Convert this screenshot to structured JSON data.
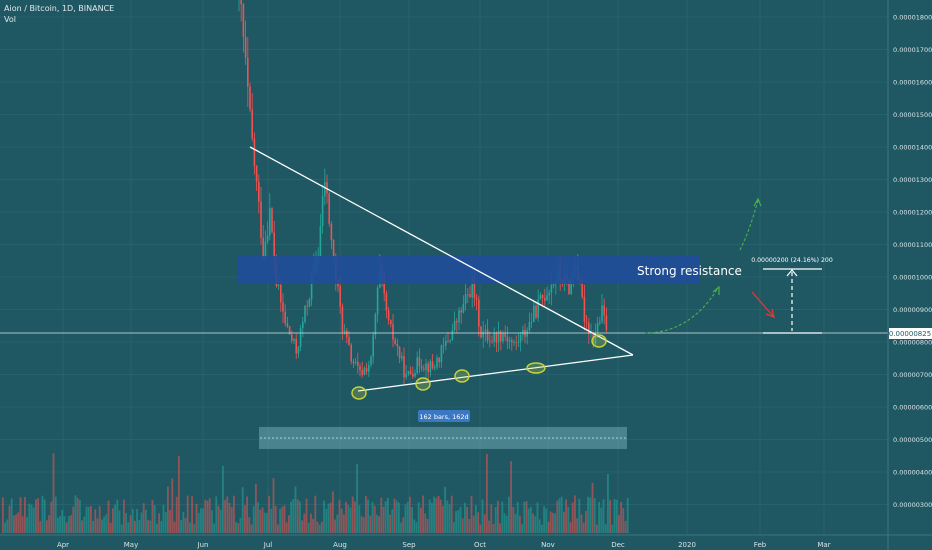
{
  "header": {
    "symbol": "Aion / Bitcoin, 1D, BINANCE",
    "indicator": "Vol"
  },
  "colors": {
    "background": "#1f5863",
    "grid": "#2b6570",
    "up": "#26a69a",
    "down": "#ef5350",
    "resistance": "#1f4e9a",
    "range_box": "#7fb8c4",
    "axis_text": "#d8e4e7",
    "white": "#ffffff",
    "arrow_green": "#4caf50",
    "arrow_red": "#e53935",
    "ellipse": "#c6d23a",
    "price_tag_bg": "#ffffff"
  },
  "chart_data": {
    "type": "candlestick",
    "title": "Aion / Bitcoin, 1D, BINANCE",
    "x_axis": {
      "ticks": [
        "Apr",
        "May",
        "Jun",
        "Jul",
        "Aug",
        "Sep",
        "Oct",
        "Nov",
        "Dec",
        "2020",
        "Feb",
        "Mar"
      ]
    },
    "y_axis": {
      "range": [
        2.5e-06,
        1.9e-06
      ],
      "ticks": [
        "0.00001800",
        "0.00001700",
        "0.00001600",
        "0.00001500",
        "0.00001400",
        "0.00001300",
        "0.00001200",
        "0.00001100",
        "0.00001000",
        "0.00000900",
        "0.00000800",
        "0.00000700",
        "0.00000600",
        "0.00000500",
        "0.00000400",
        "0.00000300"
      ],
      "current_price": "0.00000825"
    },
    "price_path": [
      {
        "date": "2019-06-20",
        "price": 1.89e-05
      },
      {
        "date": "2019-06-22",
        "price": 1.73e-05
      },
      {
        "date": "2019-06-25",
        "price": 1.48e-05
      },
      {
        "date": "2019-06-28",
        "price": 1.28e-05
      },
      {
        "date": "2019-07-01",
        "price": 1.08e-05
      },
      {
        "date": "2019-07-04",
        "price": 1.2e-05
      },
      {
        "date": "2019-07-07",
        "price": 9.8e-06
      },
      {
        "date": "2019-07-11",
        "price": 8.6e-06
      },
      {
        "date": "2019-07-16",
        "price": 7.7e-06
      },
      {
        "date": "2019-07-21",
        "price": 9.2e-06
      },
      {
        "date": "2019-07-26",
        "price": 1.08e-05
      },
      {
        "date": "2019-07-29",
        "price": 1.3e-05
      },
      {
        "date": "2019-08-02",
        "price": 1.05e-05
      },
      {
        "date": "2019-08-06",
        "price": 8.5e-06
      },
      {
        "date": "2019-08-10",
        "price": 7.5e-06
      },
      {
        "date": "2019-08-14",
        "price": 7e-06
      },
      {
        "date": "2019-08-19",
        "price": 7.4e-06
      },
      {
        "date": "2019-08-23",
        "price": 1.02e-05
      },
      {
        "date": "2019-08-27",
        "price": 8.5e-06
      },
      {
        "date": "2019-08-31",
        "price": 7.8e-06
      },
      {
        "date": "2019-09-04",
        "price": 6.9e-06
      },
      {
        "date": "2019-09-10",
        "price": 7.4e-06
      },
      {
        "date": "2019-09-16",
        "price": 7.2e-06
      },
      {
        "date": "2019-09-21",
        "price": 7.8e-06
      },
      {
        "date": "2019-09-26",
        "price": 8.5e-06
      },
      {
        "date": "2019-09-30",
        "price": 9.1e-06
      },
      {
        "date": "2019-10-04",
        "price": 9.8e-06
      },
      {
        "date": "2019-10-08",
        "price": 8.3e-06
      },
      {
        "date": "2019-10-13",
        "price": 8.1e-06
      },
      {
        "date": "2019-10-18",
        "price": 8.3e-06
      },
      {
        "date": "2019-10-23",
        "price": 7.9e-06
      },
      {
        "date": "2019-10-28",
        "price": 8.3e-06
      },
      {
        "date": "2019-11-02",
        "price": 9e-06
      },
      {
        "date": "2019-11-07",
        "price": 9.6e-06
      },
      {
        "date": "2019-11-12",
        "price": 1.01e-05
      },
      {
        "date": "2019-11-17",
        "price": 9.7e-06
      },
      {
        "date": "2019-11-20",
        "price": 1.05e-05
      },
      {
        "date": "2019-11-24",
        "price": 8.8e-06
      },
      {
        "date": "2019-11-28",
        "price": 8.1e-06
      },
      {
        "date": "2019-12-02",
        "price": 8.9e-06
      },
      {
        "date": "2019-12-05",
        "price": 8.25e-06
      }
    ],
    "annotations": {
      "resistance_label": "Strong resistance",
      "measure_label": "0.00000200 (24.16%) 200",
      "range_label": "162 bars, 162d"
    }
  }
}
